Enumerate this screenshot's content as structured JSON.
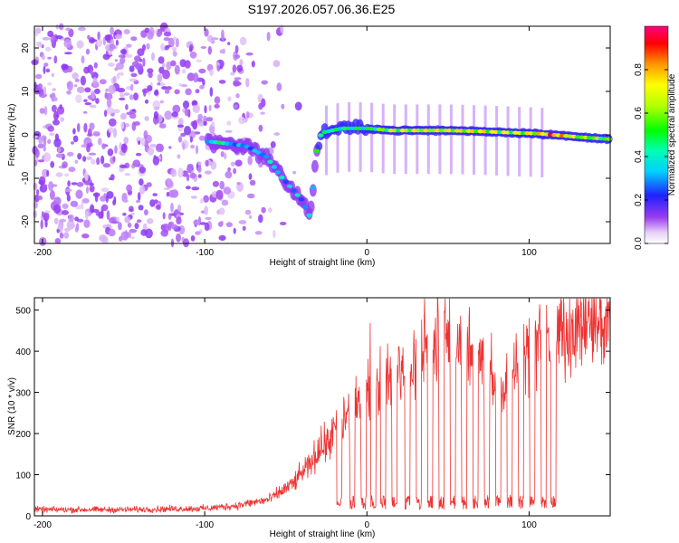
{
  "title": "S197.2026.057.06.36.E25",
  "chart_data": [
    {
      "type": "heatmap",
      "name": "spectrogram",
      "xlabel": "Height of straight line (km)",
      "ylabel": "Frequency (Hz)",
      "xlim": [
        -205,
        150
      ],
      "ylim": [
        -25,
        25
      ],
      "xticks": [
        -200,
        -100,
        0,
        100
      ],
      "yticks": [
        -20,
        -10,
        0,
        10,
        20
      ],
      "colorbar": {
        "label": "Normalized spectral amplitude",
        "range": [
          0,
          1
        ],
        "ticks": [
          0.0,
          0.2,
          0.4,
          0.6,
          0.8
        ]
      },
      "tone_track": [
        {
          "x": -98,
          "f": -1.5,
          "amp": 0.55
        },
        {
          "x": -75,
          "f": -2.5,
          "amp": 0.45
        },
        {
          "x": -62,
          "f": -5,
          "amp": 0.5
        },
        {
          "x": -52,
          "f": -10,
          "amp": 0.45
        },
        {
          "x": -40,
          "f": -15,
          "amp": 0.45
        },
        {
          "x": -35,
          "f": -19,
          "amp": 0.5
        },
        {
          "x": -31,
          "f": -4,
          "amp": 0.55
        },
        {
          "x": -28,
          "f": 0.5,
          "amp": 0.5
        },
        {
          "x": -15,
          "f": 1.5,
          "amp": 0.5
        },
        {
          "x": 0,
          "f": 1.5,
          "amp": 0.55
        },
        {
          "x": 15,
          "f": 1,
          "amp": 0.7
        },
        {
          "x": 30,
          "f": 1,
          "amp": 0.75
        },
        {
          "x": 50,
          "f": 1,
          "amp": 0.75
        },
        {
          "x": 70,
          "f": 0.8,
          "amp": 0.8
        },
        {
          "x": 90,
          "f": 0.5,
          "amp": 0.75
        },
        {
          "x": 105,
          "f": 0.3,
          "amp": 0.8
        },
        {
          "x": 115,
          "f": 0,
          "amp": 0.95
        },
        {
          "x": 130,
          "f": -0.5,
          "amp": 0.7
        },
        {
          "x": 150,
          "f": -1,
          "amp": 0.6
        }
      ]
    },
    {
      "type": "line",
      "name": "snr",
      "xlabel": "Height of straight line (km)",
      "ylabel": "SNR (10 * v/v)",
      "xlim": [
        -205,
        150
      ],
      "ylim": [
        0,
        530
      ],
      "xticks": [
        -200,
        -100,
        0,
        100
      ],
      "yticks": [
        0,
        100,
        200,
        300,
        400,
        500
      ],
      "color": "#ee3333",
      "envelope": [
        {
          "x": -205,
          "y": 15
        },
        {
          "x": -150,
          "y": 15
        },
        {
          "x": -100,
          "y": 18
        },
        {
          "x": -80,
          "y": 25
        },
        {
          "x": -60,
          "y": 40
        },
        {
          "x": -45,
          "y": 80
        },
        {
          "x": -35,
          "y": 130
        },
        {
          "x": -25,
          "y": 180
        },
        {
          "x": -15,
          "y": 230
        },
        {
          "x": 0,
          "y": 290
        },
        {
          "x": 15,
          "y": 340
        },
        {
          "x": 30,
          "y": 380
        },
        {
          "x": 40,
          "y": 420
        },
        {
          "x": 55,
          "y": 410
        },
        {
          "x": 70,
          "y": 380
        },
        {
          "x": 80,
          "y": 300
        },
        {
          "x": 95,
          "y": 400
        },
        {
          "x": 115,
          "y": 440
        },
        {
          "x": 130,
          "y": 460
        },
        {
          "x": 150,
          "y": 470
        }
      ],
      "dropouts_x": [
        -17,
        -9,
        -2,
        4,
        10,
        17,
        25,
        32,
        39,
        46,
        53,
        60,
        67,
        74,
        81,
        88,
        95,
        102,
        109,
        115
      ]
    }
  ]
}
